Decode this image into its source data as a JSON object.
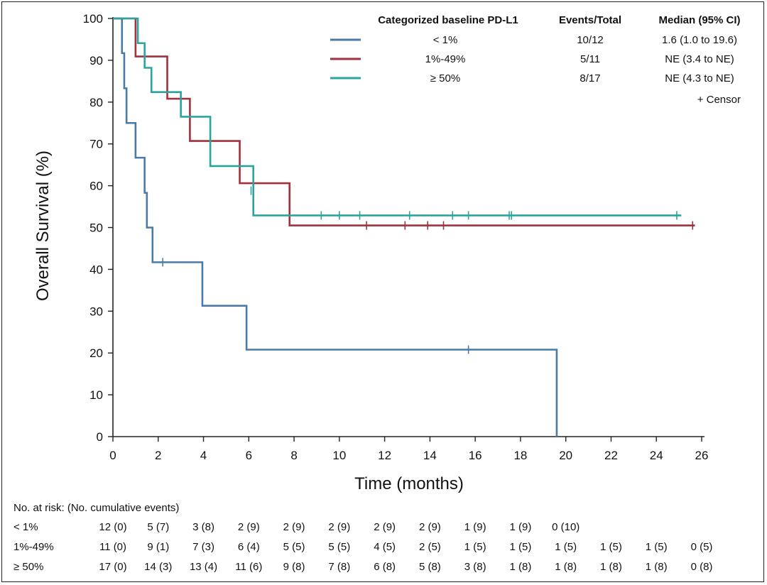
{
  "chart_data": {
    "type": "line",
    "subtype": "kaplan-meier",
    "xlabel": "Time (months)",
    "ylabel": "Overall Survival (%)",
    "xlim": [
      0,
      26
    ],
    "ylim": [
      0,
      100
    ],
    "xticks": [
      0,
      2,
      4,
      6,
      8,
      10,
      12,
      14,
      16,
      18,
      20,
      22,
      24,
      26
    ],
    "yticks": [
      0,
      10,
      20,
      30,
      40,
      50,
      60,
      70,
      80,
      90,
      100
    ],
    "grid": false,
    "legend": {
      "placement": "top-right",
      "header": {
        "group": "Categorized baseline PD-L1",
        "events": "Events/Total",
        "median": "Median (95% CI)"
      },
      "censor_note": "+ Censor"
    },
    "series": [
      {
        "name": "< 1%",
        "color": "#4a7aa6",
        "events_total": "10/12",
        "median": "1.6 (1.0 to 19.6)",
        "steps": [
          [
            0,
            100
          ],
          [
            0.4,
            91.7
          ],
          [
            0.5,
            83.3
          ],
          [
            0.6,
            75.0
          ],
          [
            1.0,
            66.7
          ],
          [
            1.4,
            58.3
          ],
          [
            1.5,
            50.0
          ],
          [
            1.75,
            41.7
          ],
          [
            3.95,
            31.3
          ],
          [
            5.9,
            20.8
          ],
          [
            19.6,
            0
          ]
        ],
        "end": 19.6,
        "censors": [
          [
            2.2,
            41.7
          ],
          [
            15.7,
            20.8
          ]
        ]
      },
      {
        "name": "1%-49%",
        "color": "#a1313c",
        "events_total": "5/11",
        "median": "NE (3.4 to NE)",
        "steps": [
          [
            0,
            100
          ],
          [
            1.0,
            90.9
          ],
          [
            2.4,
            80.8
          ],
          [
            3.4,
            70.7
          ],
          [
            5.6,
            60.6
          ],
          [
            7.8,
            50.5
          ]
        ],
        "end": 25.7,
        "censors": [
          [
            11.2,
            50.5
          ],
          [
            12.9,
            50.5
          ],
          [
            13.9,
            50.5
          ],
          [
            14.6,
            50.5
          ],
          [
            25.6,
            50.5
          ]
        ]
      },
      {
        "name": "≥ 50%",
        "color": "#2aa59d",
        "events_total": "8/17",
        "median": "NE (4.3 to NE)",
        "steps": [
          [
            0,
            100
          ],
          [
            1.1,
            94.1
          ],
          [
            1.4,
            88.2
          ],
          [
            1.7,
            82.4
          ],
          [
            3.0,
            76.5
          ],
          [
            4.3,
            64.7
          ],
          [
            6.2,
            52.9
          ]
        ],
        "end": 25.1,
        "censors": [
          [
            6.1,
            58.8
          ],
          [
            9.2,
            52.9
          ],
          [
            10.0,
            52.9
          ],
          [
            10.9,
            52.9
          ],
          [
            13.1,
            52.9
          ],
          [
            15.0,
            52.9
          ],
          [
            15.7,
            52.9
          ],
          [
            17.5,
            52.9
          ],
          [
            17.6,
            52.9
          ],
          [
            24.9,
            52.9
          ]
        ]
      }
    ]
  },
  "risk_table": {
    "title": "No. at risk: (No. cumulative events)",
    "rows": [
      {
        "label": "< 1%",
        "values": [
          "12 (0)",
          "5 (7)",
          "3 (8)",
          "2 (9)",
          "2 (9)",
          "2 (9)",
          "2 (9)",
          "2 (9)",
          "1 (9)",
          "1 (9)",
          "0 (10)"
        ]
      },
      {
        "label": "1%-49%",
        "values": [
          "11 (0)",
          "9 (1)",
          "7 (3)",
          "6 (4)",
          "5 (5)",
          "5 (5)",
          "4 (5)",
          "2 (5)",
          "1 (5)",
          "1 (5)",
          "1 (5)",
          "1 (5)",
          "1 (5)",
          "0 (5)"
        ]
      },
      {
        "label": "≥ 50%",
        "values": [
          "17 (0)",
          "14 (3)",
          "13 (4)",
          "11 (6)",
          "9 (8)",
          "7 (8)",
          "6 (8)",
          "5 (8)",
          "3 (8)",
          "1 (8)",
          "1 (8)",
          "1 (8)",
          "1 (8)",
          "0 (8)"
        ]
      }
    ]
  }
}
